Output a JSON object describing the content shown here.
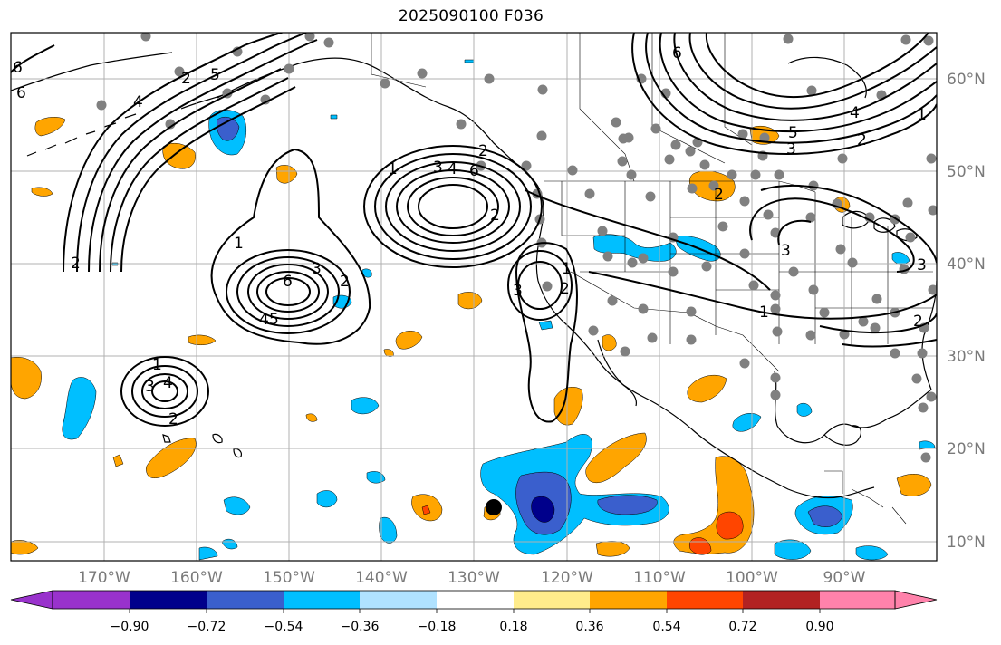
{
  "title": "2025090100 F036",
  "longitude_labels": [
    "170°W",
    "160°W",
    "150°W",
    "140°W",
    "130°W",
    "120°W",
    "110°W",
    "100°W",
    "90°W"
  ],
  "latitude_labels": [
    "60°N",
    "50°N",
    "40°N",
    "30°N",
    "20°N",
    "10°N"
  ],
  "colorbar": {
    "tick_labels": [
      "−0.90",
      "−0.72",
      "−0.54",
      "−0.36",
      "−0.18",
      "0.18",
      "0.36",
      "0.54",
      "0.72",
      "0.90"
    ],
    "colors": [
      "#9932cc",
      "#00008b",
      "#3a5fcd",
      "#00bfff",
      "#b0e2ff",
      "#ffffff",
      "#ffec8b",
      "#ffa500",
      "#ff4500",
      "#b22222",
      "#ff82ab"
    ]
  },
  "contour_labels": {
    "nw_ridge": [
      "6",
      "6",
      "4",
      "5",
      "2",
      "2"
    ],
    "gulf_alaska": [
      "1",
      "3",
      "4",
      "6",
      "2",
      "2"
    ],
    "central_pacific": [
      "1",
      "6",
      "3",
      "2",
      "4",
      "5"
    ],
    "hawaii": [
      "1",
      "3",
      "4",
      "2"
    ],
    "baja": [
      "3",
      "1",
      "2"
    ],
    "canada": [
      "6",
      "5",
      "3",
      "4",
      "2",
      "1"
    ],
    "us": [
      "2",
      "3",
      "1",
      "3",
      "2"
    ]
  },
  "colors": {
    "contour": "#000000",
    "station_dot": "#808080",
    "grid": "#b0b0b0",
    "orange": "#ffa500",
    "deep_sky_blue": "#00bfff",
    "royal_blue": "#3a5fcd",
    "navy": "#00008b",
    "orange_red": "#ff4500"
  }
}
